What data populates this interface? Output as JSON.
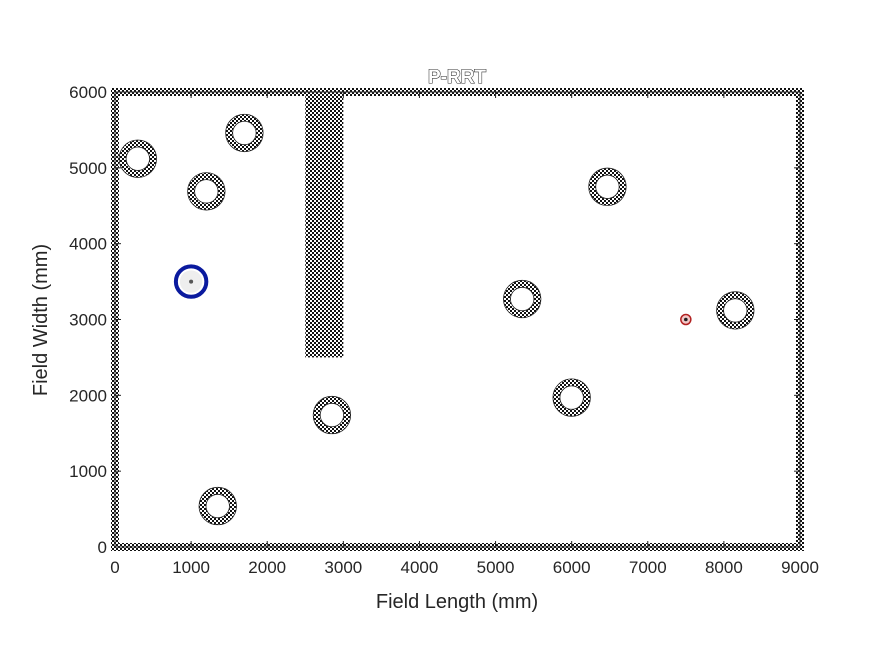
{
  "chart_data": {
    "type": "scatter",
    "title": "P-RRT",
    "xlabel": "Field Length (mm)",
    "ylabel": "Field Width (mm)",
    "xlim": [
      0,
      9000
    ],
    "ylim": [
      0,
      6000
    ],
    "xticks": [
      "0",
      "1000",
      "2000",
      "3000",
      "4000",
      "5000",
      "6000",
      "7000",
      "8000",
      "9000"
    ],
    "yticks": [
      "0",
      "1000",
      "2000",
      "3000",
      "4000",
      "5000",
      "6000"
    ],
    "field_boundary": {
      "x": [
        0,
        9000
      ],
      "y": [
        0,
        6000
      ]
    },
    "wall": {
      "x": [
        2500,
        3000
      ],
      "y": [
        2500,
        6000
      ]
    },
    "obstacles": [
      {
        "x": 300,
        "y": 5120
      },
      {
        "x": 1700,
        "y": 5460
      },
      {
        "x": 1200,
        "y": 4690
      },
      {
        "x": 1350,
        "y": 540
      },
      {
        "x": 2850,
        "y": 1740
      },
      {
        "x": 5350,
        "y": 3270
      },
      {
        "x": 6000,
        "y": 1970
      },
      {
        "x": 6470,
        "y": 4750
      },
      {
        "x": 8150,
        "y": 3120
      }
    ],
    "obstacle_radius": 200,
    "start": {
      "x": 1000,
      "y": 3500
    },
    "goal": {
      "x": 7500,
      "y": 3000
    },
    "colors": {
      "start": "#0a1a9e",
      "goal": "#b22222",
      "obstacle": "#222222",
      "axis": "#262626"
    }
  }
}
